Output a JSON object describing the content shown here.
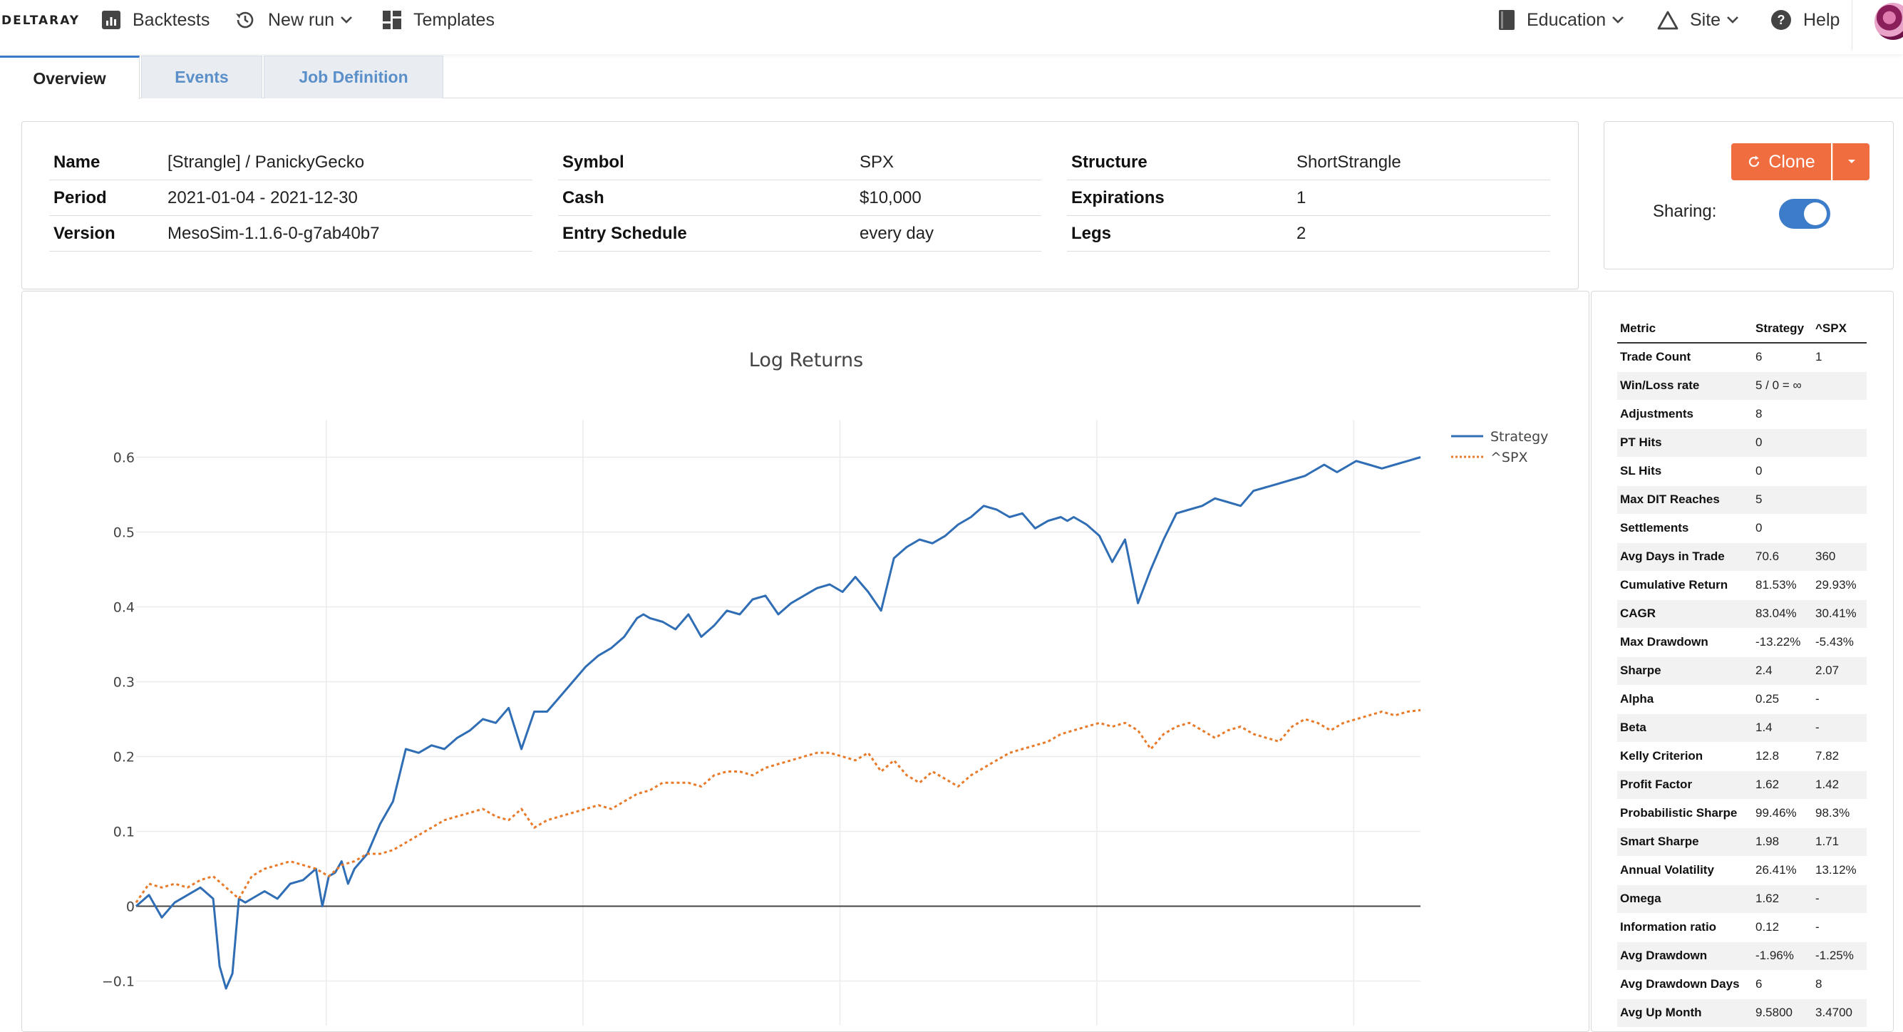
{
  "navbar": {
    "brand": "DeltaRay",
    "left_items": [
      {
        "label": "Backtests",
        "icon": "bar-chart-icon"
      },
      {
        "label": "New run",
        "icon": "history-icon"
      },
      {
        "label": "Templates",
        "icon": "dashboard-icon"
      }
    ],
    "right_items": [
      {
        "label": "Education",
        "icon": "book-icon"
      },
      {
        "label": "Site",
        "icon": "triangle-icon"
      },
      {
        "label": "Help",
        "icon": "help-icon"
      }
    ]
  },
  "tabs": [
    {
      "label": "Overview",
      "active": true
    },
    {
      "label": "Events",
      "active": false
    },
    {
      "label": "Job Definition",
      "active": false
    }
  ],
  "info": {
    "col1": [
      {
        "key": "Name",
        "value": "[Strangle] / PanickyGecko"
      },
      {
        "key": "Period",
        "value": "2021-01-04 - 2021-12-30"
      },
      {
        "key": "Version",
        "value": "MesoSim-1.1.6-0-g7ab40b7"
      }
    ],
    "col2": [
      {
        "key": "Symbol",
        "value": "SPX"
      },
      {
        "key": "Cash",
        "value": "$10,000"
      },
      {
        "key": "Entry Schedule",
        "value": "every day"
      }
    ],
    "col3": [
      {
        "key": "Structure",
        "value": "ShortStrangle"
      },
      {
        "key": "Expirations",
        "value": "1"
      },
      {
        "key": "Legs",
        "value": "2"
      }
    ]
  },
  "actions": {
    "clone_label": "Clone",
    "sharing_label": "Sharing:",
    "sharing_enabled": true
  },
  "chart_data": {
    "type": "line",
    "title": "Log Returns",
    "xlabel": "",
    "ylabel": "",
    "ylim": [
      -0.1,
      0.6
    ],
    "yticks": [
      "0.6",
      "0.5",
      "0.4",
      "0.3",
      "0.2",
      "0.1",
      "0",
      "−0.1"
    ],
    "ytick_values": [
      0.6,
      0.5,
      0.4,
      0.3,
      0.2,
      0.1,
      0,
      -0.1
    ],
    "x_range": [
      0,
      1
    ],
    "legend": [
      "Strategy",
      "^SPX"
    ],
    "legend_position": "top-right",
    "grid": true,
    "colors": {
      "strategy": "#2f6db5",
      "spx": "#e87a2a"
    },
    "series": [
      {
        "name": "Strategy",
        "x": [
          0.0,
          0.01,
          0.02,
          0.03,
          0.04,
          0.05,
          0.06,
          0.065,
          0.07,
          0.075,
          0.08,
          0.085,
          0.09,
          0.1,
          0.11,
          0.12,
          0.13,
          0.14,
          0.145,
          0.15,
          0.155,
          0.16,
          0.165,
          0.17,
          0.18,
          0.19,
          0.2,
          0.21,
          0.22,
          0.23,
          0.24,
          0.25,
          0.26,
          0.27,
          0.28,
          0.29,
          0.3,
          0.31,
          0.32,
          0.33,
          0.34,
          0.35,
          0.36,
          0.37,
          0.38,
          0.39,
          0.395,
          0.4,
          0.41,
          0.42,
          0.43,
          0.44,
          0.45,
          0.46,
          0.47,
          0.48,
          0.49,
          0.5,
          0.51,
          0.52,
          0.53,
          0.54,
          0.55,
          0.56,
          0.57,
          0.58,
          0.59,
          0.6,
          0.61,
          0.62,
          0.63,
          0.64,
          0.65,
          0.66,
          0.67,
          0.68,
          0.69,
          0.7,
          0.71,
          0.72,
          0.725,
          0.73,
          0.74,
          0.75,
          0.76,
          0.77,
          0.78,
          0.79,
          0.8,
          0.81,
          0.82,
          0.83,
          0.84,
          0.85,
          0.86,
          0.87,
          0.88,
          0.89,
          0.9,
          0.91,
          0.915,
          0.92,
          0.925,
          0.93,
          0.935,
          0.94,
          0.945,
          0.95,
          0.96,
          0.97,
          0.98,
          0.99,
          1.0
        ],
        "values": [
          0.0,
          0.015,
          -0.015,
          0.005,
          0.015,
          0.025,
          0.01,
          -0.08,
          -0.11,
          -0.09,
          0.01,
          0.005,
          0.01,
          0.02,
          0.01,
          0.03,
          0.035,
          0.05,
          0.0,
          0.04,
          0.045,
          0.06,
          0.03,
          0.05,
          0.07,
          0.11,
          0.14,
          0.21,
          0.205,
          0.215,
          0.21,
          0.225,
          0.235,
          0.25,
          0.245,
          0.265,
          0.21,
          0.26,
          0.26,
          0.28,
          0.3,
          0.32,
          0.335,
          0.345,
          0.36,
          0.385,
          0.39,
          0.385,
          0.38,
          0.37,
          0.39,
          0.36,
          0.375,
          0.395,
          0.39,
          0.41,
          0.415,
          0.39,
          0.405,
          0.415,
          0.425,
          0.43,
          0.42,
          0.44,
          0.42,
          0.395,
          0.465,
          0.48,
          0.49,
          0.485,
          0.495,
          0.51,
          0.52,
          0.535,
          0.53,
          0.52,
          0.525,
          0.505,
          0.515,
          0.52,
          0.515,
          0.52,
          0.51,
          0.495,
          0.46,
          0.49,
          0.405,
          0.45,
          0.49,
          0.525,
          0.53,
          0.535,
          0.545,
          0.54,
          0.535,
          0.555,
          0.56,
          0.565,
          0.57,
          0.575,
          0.58,
          0.585,
          0.59,
          0.585,
          0.58,
          0.585,
          0.59,
          0.595,
          0.59,
          0.585,
          0.59,
          0.595,
          0.6
        ]
      },
      {
        "name": "^SPX",
        "x": [
          0.0,
          0.01,
          0.02,
          0.03,
          0.04,
          0.05,
          0.06,
          0.07,
          0.08,
          0.09,
          0.1,
          0.11,
          0.12,
          0.13,
          0.14,
          0.15,
          0.16,
          0.17,
          0.18,
          0.19,
          0.2,
          0.21,
          0.22,
          0.23,
          0.24,
          0.25,
          0.26,
          0.27,
          0.28,
          0.29,
          0.3,
          0.31,
          0.32,
          0.33,
          0.34,
          0.35,
          0.36,
          0.37,
          0.38,
          0.39,
          0.4,
          0.41,
          0.42,
          0.43,
          0.44,
          0.45,
          0.46,
          0.47,
          0.48,
          0.49,
          0.5,
          0.51,
          0.52,
          0.53,
          0.54,
          0.55,
          0.56,
          0.57,
          0.58,
          0.59,
          0.6,
          0.61,
          0.62,
          0.63,
          0.64,
          0.65,
          0.66,
          0.67,
          0.68,
          0.69,
          0.7,
          0.71,
          0.72,
          0.73,
          0.74,
          0.75,
          0.76,
          0.77,
          0.78,
          0.79,
          0.8,
          0.81,
          0.82,
          0.83,
          0.84,
          0.85,
          0.86,
          0.87,
          0.88,
          0.89,
          0.9,
          0.91,
          0.92,
          0.93,
          0.94,
          0.95,
          0.96,
          0.97,
          0.98,
          0.99,
          1.0
        ],
        "values": [
          0.005,
          0.03,
          0.025,
          0.03,
          0.025,
          0.035,
          0.04,
          0.025,
          0.01,
          0.04,
          0.05,
          0.055,
          0.06,
          0.055,
          0.05,
          0.04,
          0.055,
          0.06,
          0.07,
          0.07,
          0.075,
          0.085,
          0.095,
          0.105,
          0.115,
          0.12,
          0.125,
          0.13,
          0.12,
          0.115,
          0.13,
          0.105,
          0.115,
          0.12,
          0.125,
          0.13,
          0.135,
          0.13,
          0.14,
          0.15,
          0.155,
          0.165,
          0.165,
          0.165,
          0.16,
          0.175,
          0.18,
          0.18,
          0.175,
          0.185,
          0.19,
          0.195,
          0.2,
          0.205,
          0.205,
          0.2,
          0.195,
          0.205,
          0.18,
          0.195,
          0.175,
          0.165,
          0.18,
          0.17,
          0.16,
          0.175,
          0.185,
          0.195,
          0.205,
          0.21,
          0.215,
          0.22,
          0.23,
          0.235,
          0.24,
          0.245,
          0.24,
          0.245,
          0.235,
          0.21,
          0.23,
          0.24,
          0.245,
          0.235,
          0.225,
          0.235,
          0.24,
          0.23,
          0.225,
          0.22,
          0.24,
          0.25,
          0.245,
          0.235,
          0.245,
          0.25,
          0.255,
          0.26,
          0.255,
          0.26,
          0.262
        ]
      }
    ]
  },
  "metrics": {
    "headers": [
      "Metric",
      "Strategy",
      "^SPX"
    ],
    "rows": [
      [
        "Trade Count",
        "6",
        "1"
      ],
      [
        "Win/Loss rate",
        "5 / 0 = ∞",
        ""
      ],
      [
        "Adjustments",
        "8",
        ""
      ],
      [
        "PT Hits",
        "0",
        ""
      ],
      [
        "SL Hits",
        "0",
        ""
      ],
      [
        "Max DIT Reaches",
        "5",
        ""
      ],
      [
        "Settlements",
        "0",
        ""
      ],
      [
        "Avg Days in Trade",
        "70.6",
        "360"
      ],
      [
        "Cumulative Return",
        "81.53%",
        "29.93%"
      ],
      [
        "CAGR",
        "83.04%",
        "30.41%"
      ],
      [
        "Max Drawdown",
        "-13.22%",
        "-5.43%"
      ],
      [
        "Sharpe",
        "2.4",
        "2.07"
      ],
      [
        "Alpha",
        "0.25",
        "-"
      ],
      [
        "Beta",
        "1.4",
        "-"
      ],
      [
        "Kelly Criterion",
        "12.8",
        "7.82"
      ],
      [
        "Profit Factor",
        "1.62",
        "1.42"
      ],
      [
        "Probabilistic Sharpe",
        "99.46%",
        "98.3%"
      ],
      [
        "Smart Sharpe",
        "1.98",
        "1.71"
      ],
      [
        "Annual Volatility",
        "26.41%",
        "13.12%"
      ],
      [
        "Omega",
        "1.62",
        "-"
      ],
      [
        "Information ratio",
        "0.12",
        "-"
      ],
      [
        "Avg Drawdown",
        "-1.96%",
        "-1.25%"
      ],
      [
        "Avg Drawdown Days",
        "6",
        "8"
      ],
      [
        "Avg Up Month",
        "9.5800",
        "3.4700"
      ]
    ]
  }
}
